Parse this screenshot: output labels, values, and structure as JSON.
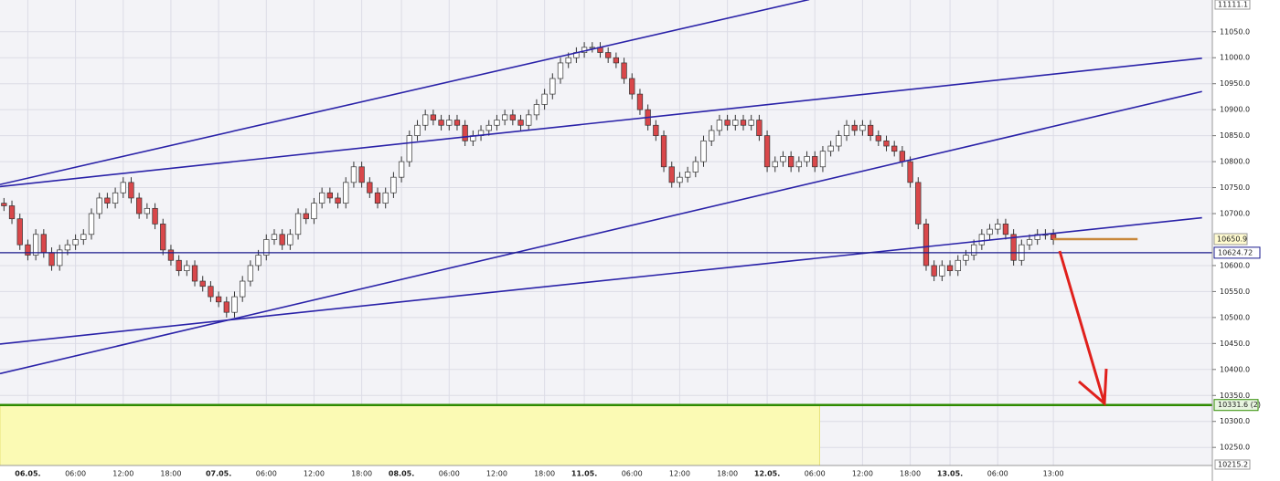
{
  "chart_data": {
    "type": "candlestick",
    "up_color": "#ffffff",
    "down_color": "#d9474a",
    "grid": true,
    "xlim": [
      -0.5,
      152
    ],
    "ylim": [
      10215.2,
      11111.1
    ],
    "yticks": [
      {
        "value": 11050,
        "label": "11050.0"
      },
      {
        "value": 11000,
        "label": "11000.0"
      },
      {
        "value": 10950,
        "label": "10950.0"
      },
      {
        "value": 10900,
        "label": "10900.0"
      },
      {
        "value": 10850,
        "label": "10850.0"
      },
      {
        "value": 10800,
        "label": "10800.0"
      },
      {
        "value": 10750,
        "label": "10750.0"
      },
      {
        "value": 10700,
        "label": "10700.0"
      },
      {
        "value": 10600,
        "label": "10600.0"
      },
      {
        "value": 10550,
        "label": "10550.0"
      },
      {
        "value": 10500,
        "label": "10500.0"
      },
      {
        "value": 10450,
        "label": "10450.0"
      },
      {
        "value": 10400,
        "label": "10400.0"
      },
      {
        "value": 10350,
        "label": "10350.0"
      },
      {
        "value": 10300,
        "label": "10300.0"
      },
      {
        "value": 10250,
        "label": "10250.0"
      }
    ],
    "xticks": [
      {
        "value": 3,
        "label": "06.05."
      },
      {
        "value": 9,
        "label": "06:00"
      },
      {
        "value": 15,
        "label": "12:00"
      },
      {
        "value": 21,
        "label": "18:00"
      },
      {
        "value": 27,
        "label": "07.05."
      },
      {
        "value": 33,
        "label": "06:00"
      },
      {
        "value": 39,
        "label": "12:00"
      },
      {
        "value": 45,
        "label": "18:00"
      },
      {
        "value": 50,
        "label": "08.05."
      },
      {
        "value": 56,
        "label": "06:00"
      },
      {
        "value": 62,
        "label": "12:00"
      },
      {
        "value": 68,
        "label": "18:00"
      },
      {
        "value": 73,
        "label": "11.05."
      },
      {
        "value": 79,
        "label": "06:00"
      },
      {
        "value": 85,
        "label": "12:00"
      },
      {
        "value": 91,
        "label": "18:00"
      },
      {
        "value": 96,
        "label": "12.05."
      },
      {
        "value": 102,
        "label": "06:00"
      },
      {
        "value": 108,
        "label": "12:00"
      },
      {
        "value": 114,
        "label": "18:00"
      },
      {
        "value": 119,
        "label": "13.05."
      },
      {
        "value": 125,
        "label": "06:00"
      },
      {
        "value": 132,
        "label": "13:00"
      }
    ],
    "open": [
      10720,
      10715,
      10690,
      10640,
      10620,
      10660,
      10625,
      10600,
      10630,
      10640,
      10650,
      10660,
      10700,
      10730,
      10720,
      10740,
      10760,
      10730,
      10700,
      10710,
      10680,
      10630,
      10610,
      10590,
      10600,
      10570,
      10560,
      10540,
      10530,
      10510,
      10540,
      10570,
      10600,
      10620,
      10650,
      10660,
      10640,
      10660,
      10700,
      10690,
      10720,
      10740,
      10730,
      10720,
      10760,
      10790,
      10760,
      10740,
      10720,
      10740,
      10770,
      10800,
      10850,
      10870,
      10890,
      10880,
      10870,
      10880,
      10870,
      10840,
      10850,
      10860,
      10870,
      10880,
      10890,
      10880,
      10870,
      10890,
      10910,
      10930,
      10960,
      10990,
      11000,
      11010,
      11020,
      11020,
      11010,
      11000,
      10990,
      10960,
      10930,
      10900,
      10870,
      10850,
      10790,
      10760,
      10770,
      10780,
      10800,
      10840,
      10860,
      10880,
      10870,
      10880,
      10870,
      10880,
      10850,
      10790,
      10800,
      10810,
      10790,
      10800,
      10810,
      10790,
      10820,
      10830,
      10850,
      10870,
      10860,
      10870,
      10850,
      10840,
      10830,
      10820,
      10800,
      10760,
      10680,
      10600,
      10580,
      10600,
      10590,
      10610,
      10620,
      10640,
      10660,
      10670,
      10680,
      10660,
      10610,
      10640,
      10650,
      10660,
      10660
    ],
    "high": [
      10730,
      10725,
      10700,
      10650,
      10670,
      10670,
      10635,
      10640,
      10650,
      10660,
      10670,
      10710,
      10740,
      10740,
      10750,
      10770,
      10770,
      10740,
      10720,
      10720,
      10690,
      10640,
      10620,
      10610,
      10610,
      10580,
      10570,
      10550,
      10540,
      10550,
      10580,
      10610,
      10630,
      10660,
      10670,
      10670,
      10670,
      10710,
      10710,
      10730,
      10750,
      10750,
      10740,
      10770,
      10800,
      10800,
      10770,
      10750,
      10750,
      10780,
      10810,
      10860,
      10880,
      10900,
      10900,
      10890,
      10890,
      10890,
      10880,
      10860,
      10870,
      10880,
      10890,
      10900,
      10900,
      10890,
      10900,
      10920,
      10940,
      10970,
      11000,
      11010,
      11020,
      11030,
      11030,
      11030,
      11020,
      11010,
      11000,
      10970,
      10940,
      10910,
      10880,
      10860,
      10800,
      10780,
      10790,
      10810,
      10850,
      10870,
      10890,
      10890,
      10890,
      10890,
      10890,
      10890,
      10860,
      10810,
      10820,
      10820,
      10810,
      10820,
      10820,
      10830,
      10840,
      10860,
      10880,
      10880,
      10880,
      10880,
      10860,
      10850,
      10840,
      10830,
      10810,
      10770,
      10690,
      10610,
      10610,
      10610,
      10620,
      10630,
      10650,
      10670,
      10680,
      10690,
      10690,
      10670,
      10650,
      10660,
      10670,
      10670,
      10670
    ],
    "low": [
      10705,
      10680,
      10630,
      10610,
      10610,
      10615,
      10590,
      10590,
      10620,
      10630,
      10640,
      10650,
      10690,
      10710,
      10710,
      10730,
      10720,
      10690,
      10690,
      10670,
      10620,
      10600,
      10580,
      10580,
      10560,
      10550,
      10530,
      10520,
      10500,
      10500,
      10530,
      10560,
      10590,
      10610,
      10640,
      10630,
      10630,
      10650,
      10680,
      10680,
      10710,
      10720,
      10710,
      10710,
      10750,
      10750,
      10730,
      10710,
      10710,
      10730,
      10760,
      10790,
      10840,
      10860,
      10870,
      10860,
      10860,
      10860,
      10830,
      10830,
      10840,
      10850,
      10860,
      10870,
      10870,
      10860,
      10860,
      10880,
      10900,
      10920,
      10950,
      10980,
      10990,
      11000,
      11010,
      11000,
      10990,
      10980,
      10950,
      10920,
      10890,
      10860,
      10840,
      10780,
      10750,
      10750,
      10760,
      10770,
      10790,
      10830,
      10850,
      10860,
      10860,
      10860,
      10860,
      10840,
      10780,
      10780,
      10790,
      10780,
      10780,
      10790,
      10780,
      10780,
      10810,
      10820,
      10840,
      10850,
      10850,
      10840,
      10830,
      10820,
      10810,
      10790,
      10750,
      10670,
      10590,
      10570,
      10570,
      10580,
      10580,
      10600,
      10610,
      10630,
      10650,
      10660,
      10650,
      10600,
      10600,
      10630,
      10640,
      10650,
      10640
    ],
    "close": [
      10715,
      10690,
      10640,
      10620,
      10660,
      10625,
      10600,
      10630,
      10640,
      10650,
      10660,
      10700,
      10730,
      10720,
      10740,
      10760,
      10730,
      10700,
      10710,
      10680,
      10630,
      10610,
      10590,
      10600,
      10570,
      10560,
      10540,
      10530,
      10510,
      10540,
      10570,
      10600,
      10620,
      10650,
      10660,
      10640,
      10660,
      10700,
      10690,
      10720,
      10740,
      10730,
      10720,
      10760,
      10790,
      10760,
      10740,
      10720,
      10740,
      10770,
      10800,
      10850,
      10870,
      10890,
      10880,
      10870,
      10880,
      10870,
      10840,
      10850,
      10860,
      10870,
      10880,
      10890,
      10880,
      10870,
      10890,
      10910,
      10930,
      10960,
      10990,
      11000,
      11010,
      11020,
      11020,
      11010,
      11000,
      10990,
      10960,
      10930,
      10900,
      10870,
      10850,
      10790,
      10760,
      10770,
      10780,
      10800,
      10840,
      10860,
      10880,
      10870,
      10880,
      10870,
      10880,
      10850,
      10790,
      10800,
      10810,
      10790,
      10800,
      10810,
      10790,
      10820,
      10830,
      10850,
      10870,
      10860,
      10870,
      10850,
      10840,
      10830,
      10820,
      10800,
      10760,
      10680,
      10600,
      10580,
      10600,
      10590,
      10610,
      10620,
      10640,
      10660,
      10670,
      10680,
      10660,
      10610,
      10640,
      10650,
      10660,
      10660,
      10650
    ],
    "trendlines": [
      {
        "x": [
          -0.5,
          101.3
        ],
        "y": [
          10756,
          11112
        ],
        "color": "#2a22a8"
      },
      {
        "x": [
          -0.5,
          150.7
        ],
        "y": [
          10752,
          10999
        ],
        "color": "#2a22a8"
      },
      {
        "x": [
          -0.5,
          150.7
        ],
        "y": [
          10392,
          10935
        ],
        "color": "#2a22a8"
      },
      {
        "x": [
          -0.5,
          150.7
        ],
        "y": [
          10449,
          10692
        ],
        "color": "#2a22a8"
      }
    ],
    "levels": [
      {
        "value": 10624.72,
        "color": "#1a1a8c"
      },
      {
        "value": 10331.6,
        "label": "10331.6 (2)",
        "color": "#2e8b00"
      }
    ],
    "zone": {
      "xend": 102.6,
      "color": "#fbfab4"
    },
    "last_price": 10650.9,
    "last_price_line": {
      "x": [
        132,
        142.6
      ],
      "color": "#c8873a"
    }
  }
}
